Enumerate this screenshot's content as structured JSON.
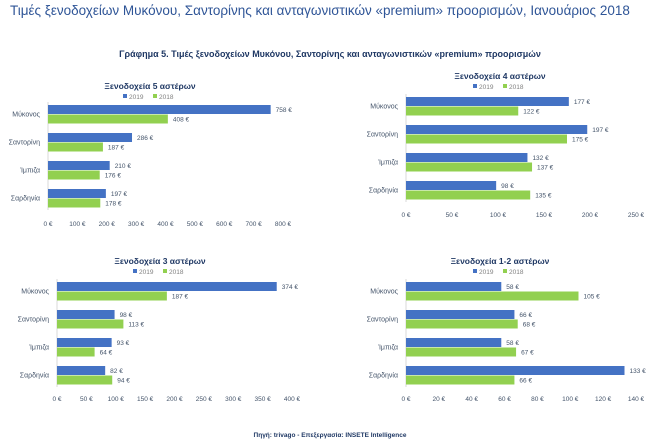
{
  "header": {
    "title": "Τιμές ξενοδοχείων Μυκόνου, Σαντορίνης και ανταγωνιστικών «premium» προορισμών, Ιανουάριος 2018",
    "figure_title": "Γράφημα 5. Τιμές ξενοδοχείων Μυκόνου, Σαντορίνης και ανταγωνιστικών «premium» προορισμών",
    "source": "Πηγή: trivago - Επεξεργασία: INSETE Intelligence"
  },
  "colors": {
    "2019": "#4472c4",
    "2018": "#92d050",
    "text": "#44546a",
    "title": "#1f3864"
  },
  "chart_data": [
    {
      "type": "bar",
      "orientation": "horizontal",
      "title": "Ξενοδοχεία 5 αστέρων",
      "categories": [
        "Μύκονος",
        "Σαντορίνη",
        "Ίμπιζα",
        "Σαρδηνία"
      ],
      "series": [
        {
          "name": "2019",
          "values": [
            758,
            286,
            210,
            197
          ]
        },
        {
          "name": "2018",
          "values": [
            408,
            187,
            176,
            178
          ]
        }
      ],
      "xlim": [
        0,
        800
      ],
      "xticks": [
        "0 €",
        "100 €",
        "200 €",
        "300 €",
        "400 €",
        "500 €",
        "600 €",
        "700 €",
        "800 €"
      ],
      "data_labels": [
        [
          "758 €",
          "286 €",
          "210 €",
          "197 €"
        ],
        [
          "408 €",
          "187 €",
          "176 €",
          "178 €"
        ]
      ],
      "legend": "top",
      "grid": false
    },
    {
      "type": "bar",
      "orientation": "horizontal",
      "title": "Ξενοδοχεία 4 αστέρων",
      "categories": [
        "Μύκονος",
        "Σαντορίνη",
        "Ίμπιζα",
        "Σαρδηνία"
      ],
      "series": [
        {
          "name": "2019",
          "values": [
            177,
            197,
            132,
            98
          ]
        },
        {
          "name": "2018",
          "values": [
            122,
            175,
            137,
            135
          ]
        }
      ],
      "xlim": [
        0,
        250
      ],
      "xticks": [
        "0 €",
        "50 €",
        "100 €",
        "150 €",
        "200 €",
        "250 €"
      ],
      "data_labels": [
        [
          "177 €",
          "197 €",
          "132 €",
          "98 €"
        ],
        [
          "122 €",
          "175 €",
          "137 €",
          "135 €"
        ]
      ],
      "legend": "top",
      "grid": false
    },
    {
      "type": "bar",
      "orientation": "horizontal",
      "title": "Ξενοδοχεία 3 αστέρων",
      "categories": [
        "Μύκονος",
        "Σαντορίνη",
        "Ίμπιζα",
        "Σαρδηνία"
      ],
      "series": [
        {
          "name": "2019",
          "values": [
            374,
            98,
            93,
            82
          ]
        },
        {
          "name": "2018",
          "values": [
            187,
            113,
            64,
            94
          ]
        }
      ],
      "xlim": [
        0,
        400
      ],
      "xticks": [
        "0 €",
        "50 €",
        "100 €",
        "150 €",
        "200 €",
        "250 €",
        "300 €",
        "350 €",
        "400 €"
      ],
      "data_labels": [
        [
          "374 €",
          "98 €",
          "93 €",
          "82 €"
        ],
        [
          "187 €",
          "113 €",
          "64 €",
          "94 €"
        ]
      ],
      "legend": "top",
      "grid": false
    },
    {
      "type": "bar",
      "orientation": "horizontal",
      "title": "Ξενοδοχεία 1-2 αστέρων",
      "categories": [
        "Μύκονος",
        "Σαντορίνη",
        "Ίμπιζα",
        "Σαρδηνία"
      ],
      "series": [
        {
          "name": "2019",
          "values": [
            58,
            66,
            58,
            133
          ]
        },
        {
          "name": "2018",
          "values": [
            105,
            68,
            67,
            66
          ]
        }
      ],
      "xlim": [
        0,
        140
      ],
      "xticks": [
        "0 €",
        "20 €",
        "40 €",
        "60 €",
        "80 €",
        "100 €",
        "120 €",
        "140 €"
      ],
      "data_labels": [
        [
          "58 €",
          "66 €",
          "58 €",
          "133 €"
        ],
        [
          "105 €",
          "68 €",
          "67 €",
          "66 €"
        ]
      ],
      "legend": "top",
      "grid": false
    }
  ]
}
